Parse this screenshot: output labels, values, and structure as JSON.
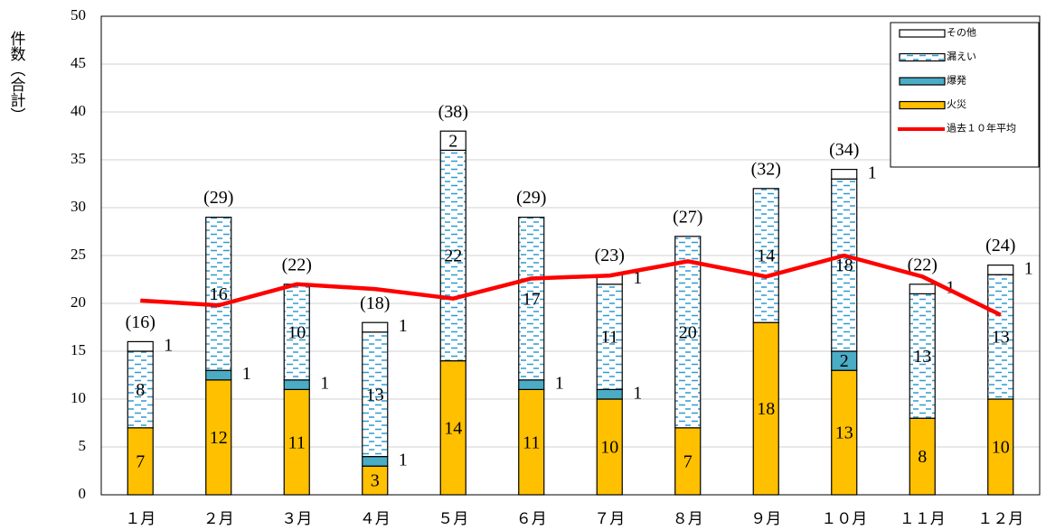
{
  "chart_data": {
    "type": "stacked_bar",
    "y_label": "件数（合計）",
    "categories": [
      "１月",
      "２月",
      "３月",
      "４月",
      "５月",
      "６月",
      "７月",
      "８月",
      "９月",
      "１０月",
      "１１月",
      "１２月"
    ],
    "series": [
      {
        "name": "火災",
        "type": "bar",
        "color": "#ffc000",
        "values": [
          7,
          12,
          11,
          3,
          14,
          11,
          10,
          7,
          18,
          13,
          8,
          10
        ]
      },
      {
        "name": "爆発",
        "type": "bar",
        "color": "#4bacc6",
        "values": [
          null,
          1,
          1,
          1,
          null,
          1,
          1,
          null,
          null,
          2,
          null,
          null
        ]
      },
      {
        "name": "漏えい",
        "type": "bar",
        "color": "#2e9bd0",
        "pattern": "dashes",
        "values": [
          8,
          16,
          10,
          13,
          22,
          17,
          11,
          20,
          14,
          18,
          13,
          13
        ]
      },
      {
        "name": "その他",
        "type": "bar",
        "color": "#ffffff",
        "values": [
          1,
          null,
          null,
          1,
          2,
          null,
          1,
          null,
          null,
          1,
          1,
          1
        ]
      },
      {
        "name": "過去１０年平均",
        "type": "line",
        "color": "#ff0000",
        "values": [
          20.3,
          19.8,
          22,
          21.5,
          20.5,
          22.6,
          22.9,
          24.4,
          22.8,
          25,
          22.8,
          18.8
        ]
      }
    ],
    "totals": {
      "values": [
        16,
        29,
        22,
        18,
        38,
        29,
        23,
        27,
        32,
        34,
        22,
        24
      ],
      "value_labels": [
        "(16)",
        "(29)",
        "(22)",
        "(18)",
        "(38)",
        "(29)",
        "(23)",
        "(27)",
        "(32)",
        "(34)",
        "(22)",
        "(24)"
      ]
    },
    "ylim": [
      0,
      50
    ],
    "yticks": [
      0,
      5,
      10,
      15,
      20,
      25,
      30,
      35,
      40,
      45,
      50
    ],
    "grid": true,
    "legend": "upper right"
  }
}
